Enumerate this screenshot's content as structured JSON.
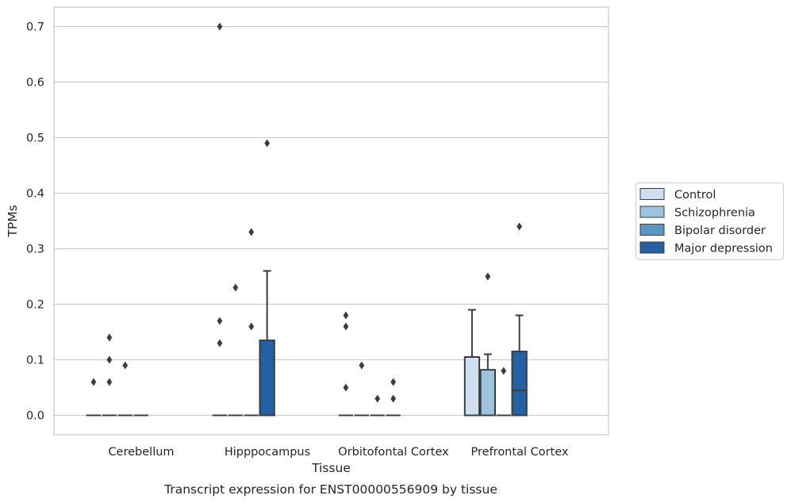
{
  "chart_data": {
    "type": "box",
    "caption": "Transcript expression for ENST00000556909 by tissue",
    "xlabel": "Tissue",
    "ylabel": "TPMs",
    "ylim": [
      -0.035,
      0.735
    ],
    "yticks": [
      0.0,
      0.1,
      0.2,
      0.3,
      0.4,
      0.5,
      0.6,
      0.7
    ],
    "ytick_labels": [
      "0.0",
      "0.1",
      "0.2",
      "0.3",
      "0.4",
      "0.5",
      "0.6",
      "0.7"
    ],
    "grid": "horizontal",
    "legend_position": "right",
    "categories": [
      "Cerebellum",
      "Hipppocampus",
      "Orbitofontal Cortex",
      "Prefrontal Cortex"
    ],
    "series": [
      {
        "name": "Control",
        "color": "#cfdff0",
        "boxes": [
          {
            "q1": 0,
            "median": 0,
            "q3": 0,
            "whislo": 0,
            "whishi": 0,
            "fliers": [
              0.06
            ]
          },
          {
            "q1": 0,
            "median": 0,
            "q3": 0,
            "whislo": 0,
            "whishi": 0,
            "fliers": [
              0.7,
              0.17,
              0.13
            ]
          },
          {
            "q1": 0,
            "median": 0,
            "q3": 0,
            "whislo": 0,
            "whishi": 0,
            "fliers": [
              0.18,
              0.16,
              0.05
            ]
          },
          {
            "q1": 0,
            "median": 0,
            "q3": 0.105,
            "whislo": 0,
            "whishi": 0.19,
            "fliers": []
          }
        ]
      },
      {
        "name": "Schizophrenia",
        "color": "#9dc3df",
        "boxes": [
          {
            "q1": 0,
            "median": 0,
            "q3": 0,
            "whislo": 0,
            "whishi": 0,
            "fliers": [
              0.14,
              0.1,
              0.06
            ]
          },
          {
            "q1": 0,
            "median": 0,
            "q3": 0,
            "whislo": 0,
            "whishi": 0,
            "fliers": [
              0.23
            ]
          },
          {
            "q1": 0,
            "median": 0,
            "q3": 0,
            "whislo": 0,
            "whishi": 0,
            "fliers": [
              0.09
            ]
          },
          {
            "q1": 0,
            "median": 0,
            "q3": 0.082,
            "whislo": 0,
            "whishi": 0.11,
            "fliers": [
              0.25
            ]
          }
        ]
      },
      {
        "name": "Bipolar disorder",
        "color": "#5698c6",
        "boxes": [
          {
            "q1": 0,
            "median": 0,
            "q3": 0,
            "whislo": 0,
            "whishi": 0,
            "fliers": [
              0.09
            ]
          },
          {
            "q1": 0,
            "median": 0,
            "q3": 0,
            "whislo": 0,
            "whishi": 0,
            "fliers": [
              0.33,
              0.16
            ]
          },
          {
            "q1": 0,
            "median": 0,
            "q3": 0,
            "whislo": 0,
            "whishi": 0,
            "fliers": [
              0.03
            ]
          },
          {
            "q1": 0,
            "median": 0,
            "q3": 0,
            "whislo": 0,
            "whishi": 0,
            "fliers": [
              0.08
            ]
          }
        ]
      },
      {
        "name": "Major depression",
        "color": "#2361a3",
        "boxes": [
          {
            "q1": 0,
            "median": 0,
            "q3": 0,
            "whislo": 0,
            "whishi": 0,
            "fliers": []
          },
          {
            "q1": 0,
            "median": 0,
            "q3": 0.135,
            "whislo": 0,
            "whishi": 0.26,
            "fliers": [
              0.49
            ]
          },
          {
            "q1": 0,
            "median": 0,
            "q3": 0,
            "whislo": 0,
            "whishi": 0,
            "fliers": [
              0.06,
              0.03
            ]
          },
          {
            "q1": 0,
            "median": 0.045,
            "q3": 0.115,
            "whislo": 0,
            "whishi": 0.18,
            "fliers": [
              0.34
            ]
          }
        ]
      }
    ]
  }
}
